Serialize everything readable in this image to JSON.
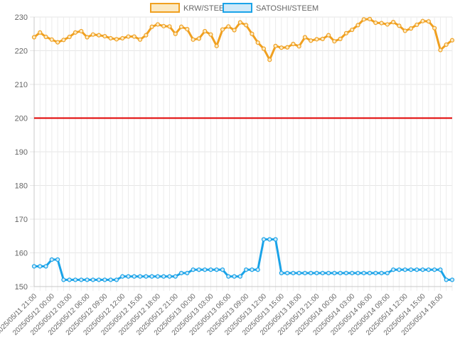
{
  "chart_data": {
    "type": "line",
    "title": "",
    "xlabel": "",
    "ylabel": "",
    "ylim": [
      150,
      230
    ],
    "y_ticks": [
      150,
      160,
      170,
      180,
      190,
      200,
      210,
      220,
      230
    ],
    "grid": true,
    "legend_position": "top",
    "x_tick_labels": [
      "2025/05/11 21:00",
      "2025/05/12 00:00",
      "2025/05/12 03:00",
      "2025/05/12 06:00",
      "2025/05/12 09:00",
      "2025/05/12 12:00",
      "2025/05/12 15:00",
      "2025/05/12 18:00",
      "2025/05/12 21:00",
      "2025/05/13 00:00",
      "2025/05/13 03:00",
      "2025/05/13 06:00",
      "2025/05/13 09:00",
      "2025/05/13 12:00",
      "2025/05/13 15:00",
      "2025/05/13 18:00",
      "2025/05/13 21:00",
      "2025/05/14 00:00",
      "2025/05/14 03:00",
      "2025/05/14 06:00",
      "2025/05/14 09:00",
      "2025/05/14 12:00",
      "2025/05/14 15:00",
      "2025/05/14 18:00"
    ],
    "reference_line": {
      "value": 200,
      "color": "#e00000"
    },
    "series": [
      {
        "name": "KRW/STEEM",
        "color": "#f0a020",
        "fill": "#fbe9c3",
        "values": [
          224.0,
          225.4,
          224.1,
          223.3,
          222.5,
          223.2,
          224.1,
          225.4,
          225.8,
          224.0,
          224.8,
          224.6,
          224.3,
          223.7,
          223.4,
          223.7,
          224.2,
          224.2,
          223.3,
          224.6,
          227.1,
          227.8,
          227.3,
          227.2,
          225.0,
          227.1,
          226.4,
          223.3,
          223.6,
          225.8,
          224.8,
          221.4,
          226.3,
          227.2,
          226.1,
          228.4,
          227.6,
          225.0,
          222.4,
          220.6,
          217.3,
          221.4,
          220.9,
          221.0,
          222.0,
          221.3,
          224.0,
          223.0,
          223.4,
          223.5,
          224.6,
          222.8,
          223.5,
          225.2,
          226.2,
          227.6,
          229.3,
          229.4,
          228.3,
          228.2,
          227.8,
          228.5,
          227.4,
          225.9,
          226.6,
          227.7,
          228.8,
          228.7,
          226.7,
          220.2,
          221.8,
          223.1
        ]
      },
      {
        "name": "SATOSHI/STEEM",
        "color": "#1aa3e8",
        "fill": "#cfe9f8",
        "values": [
          156,
          156,
          156,
          158,
          158,
          152,
          152,
          152,
          152,
          152,
          152,
          152,
          152,
          152,
          152,
          153,
          153,
          153,
          153,
          153,
          153,
          153,
          153,
          153,
          153,
          154,
          154,
          155,
          155,
          155,
          155,
          155,
          155,
          153,
          153,
          153,
          155,
          155,
          155,
          164,
          164,
          164,
          154,
          154,
          154,
          154,
          154,
          154,
          154,
          154,
          154,
          154,
          154,
          154,
          154,
          154,
          154,
          154,
          154,
          154,
          154,
          155,
          155,
          155,
          155,
          155,
          155,
          155,
          155,
          155,
          152,
          152
        ]
      }
    ]
  }
}
